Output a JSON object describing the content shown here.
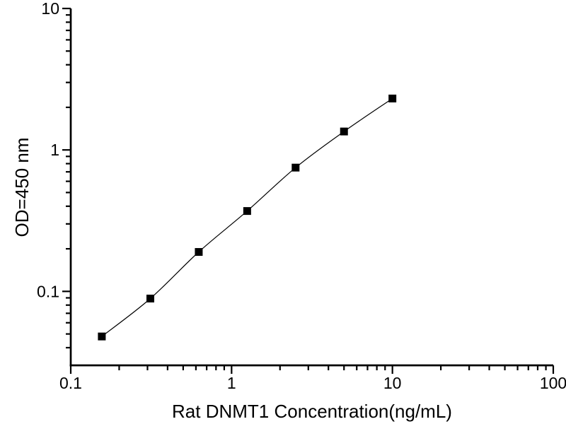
{
  "figure": {
    "background": "#ffffff",
    "axis_color": "#000000",
    "curve_color": "#000000",
    "marker_color": "#000000",
    "marker_shape": "filled-square"
  },
  "chart_data": {
    "type": "scatter",
    "title": "",
    "xlabel": "Rat DNMT1 Concentration(ng/mL)",
    "ylabel": "OD=450 nm",
    "xscale": "log",
    "yscale": "log",
    "xlim": [
      0.1,
      100
    ],
    "ylim": [
      0.03,
      10
    ],
    "grid": false,
    "legend_position": "none",
    "series": [
      {
        "name": "standard-curve",
        "marker": "square",
        "line": "smooth",
        "x": [
          0.156,
          0.3125,
          0.625,
          1.25,
          2.5,
          5,
          10
        ],
        "y": [
          0.048,
          0.089,
          0.19,
          0.37,
          0.75,
          1.35,
          2.31
        ]
      }
    ],
    "x_ticks": [
      {
        "value": 0.1,
        "label": "0.1"
      },
      {
        "value": 1,
        "label": "1"
      },
      {
        "value": 10,
        "label": "10"
      },
      {
        "value": 100,
        "label": "100"
      }
    ],
    "y_ticks": [
      {
        "value": 0.1,
        "label": "0.1"
      },
      {
        "value": 1,
        "label": "1"
      },
      {
        "value": 10,
        "label": "10"
      }
    ]
  }
}
